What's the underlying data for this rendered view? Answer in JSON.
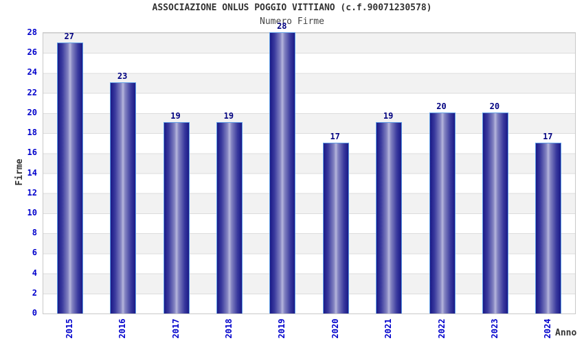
{
  "chart_data": {
    "type": "bar",
    "title": "ASSOCIAZIONE ONLUS POGGIO VITTIANO (c.f.90071230578)",
    "subtitle": "Numero Firme",
    "xlabel": "Anno",
    "ylabel": "Firme",
    "categories": [
      "2015",
      "2016",
      "2017",
      "2018",
      "2019",
      "2020",
      "2021",
      "2022",
      "2023",
      "2024"
    ],
    "values": [
      27,
      23,
      19,
      19,
      28,
      17,
      19,
      20,
      20,
      17
    ],
    "ylim": [
      0,
      28
    ],
    "yticks": [
      0,
      2,
      4,
      6,
      8,
      10,
      12,
      14,
      16,
      18,
      20,
      22,
      24,
      26,
      28
    ],
    "grid": "horizontal-bands-every-2-units",
    "legend_position": "none",
    "colors": {
      "tick_label": "#0000cc",
      "value_label": "#000080",
      "title_text": "#333333",
      "bar_edge": "#1a1a87",
      "bar_center": "#b7b7dd",
      "bar_border": "#5f9ee6",
      "band_gray": "#f2f2f2",
      "band_white": "#ffffff",
      "gridline": "#dcdcdc",
      "plot_border": "#c8c8c8"
    }
  }
}
